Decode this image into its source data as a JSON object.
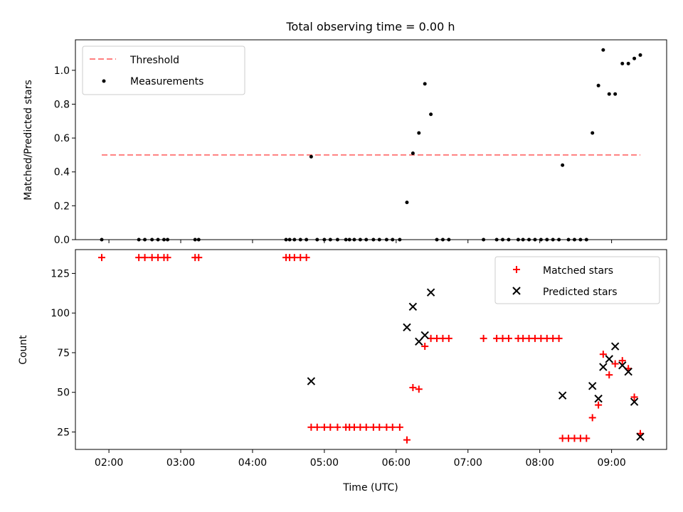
{
  "title": "Total observing time = 0.00 h",
  "xlabel": "Time (UTC)",
  "x_ticks": [
    "02:00",
    "03:00",
    "04:00",
    "05:00",
    "06:00",
    "07:00",
    "08:00",
    "09:00"
  ],
  "colors": {
    "threshold": "#ff7f7f",
    "measurement": "#000000",
    "matched": "#ff0000",
    "predicted": "#000000"
  },
  "chart_data": [
    {
      "type": "scatter",
      "ylabel": "Matched/Predicted stars",
      "xlim": [
        "01:32",
        "09:46"
      ],
      "ylim": [
        0,
        1.18
      ],
      "y_ticks": [
        0.0,
        0.2,
        0.4,
        0.6,
        0.8,
        1.0
      ],
      "legend_placement": "top-left",
      "threshold": {
        "name": "Threshold",
        "value": 0.5,
        "x_range": [
          "01:54",
          "09:24"
        ],
        "style": "dashed"
      },
      "series": [
        {
          "name": "Measurements",
          "points": [
            [
              "01:54",
              0
            ],
            [
              "02:25",
              0
            ],
            [
              "02:30",
              0
            ],
            [
              "02:36",
              0
            ],
            [
              "02:41",
              0
            ],
            [
              "02:46",
              0
            ],
            [
              "02:49",
              0
            ],
            [
              "03:12",
              0
            ],
            [
              "03:15",
              0
            ],
            [
              "04:28",
              0
            ],
            [
              "04:31",
              0
            ],
            [
              "04:35",
              0
            ],
            [
              "04:40",
              0
            ],
            [
              "04:45",
              0
            ],
            [
              "04:49",
              0.49
            ],
            [
              "04:54",
              0
            ],
            [
              "05:00",
              0
            ],
            [
              "05:05",
              0
            ],
            [
              "05:11",
              0
            ],
            [
              "05:18",
              0
            ],
            [
              "05:21",
              0
            ],
            [
              "05:25",
              0
            ],
            [
              "05:30",
              0
            ],
            [
              "05:35",
              0
            ],
            [
              "05:41",
              0
            ],
            [
              "05:46",
              0
            ],
            [
              "05:52",
              0
            ],
            [
              "05:57",
              0
            ],
            [
              "06:03",
              0
            ],
            [
              "06:09",
              0.22
            ],
            [
              "06:14",
              0.51
            ],
            [
              "06:19",
              0.63
            ],
            [
              "06:24",
              0.92
            ],
            [
              "06:29",
              0.74
            ],
            [
              "06:34",
              0
            ],
            [
              "06:39",
              0
            ],
            [
              "06:44",
              0
            ],
            [
              "07:13",
              0
            ],
            [
              "07:24",
              0
            ],
            [
              "07:29",
              0
            ],
            [
              "07:34",
              0
            ],
            [
              "07:42",
              0
            ],
            [
              "07:46",
              0
            ],
            [
              "07:51",
              0
            ],
            [
              "07:56",
              0
            ],
            [
              "08:01",
              0
            ],
            [
              "08:06",
              0
            ],
            [
              "08:11",
              0
            ],
            [
              "08:16",
              0
            ],
            [
              "08:24",
              0
            ],
            [
              "08:29",
              0
            ],
            [
              "08:34",
              0
            ],
            [
              "08:39",
              0
            ],
            [
              "08:19",
              0.44
            ],
            [
              "08:44",
              0.63
            ],
            [
              "08:49",
              0.91
            ],
            [
              "08:53",
              1.12
            ],
            [
              "08:58",
              0.86
            ],
            [
              "09:03",
              0.86
            ],
            [
              "09:09",
              1.04
            ],
            [
              "09:14",
              1.04
            ],
            [
              "09:19",
              1.07
            ],
            [
              "09:24",
              1.09
            ]
          ]
        }
      ]
    },
    {
      "type": "scatter",
      "ylabel": "Count",
      "xlim": [
        "01:32",
        "09:46"
      ],
      "ylim": [
        14,
        140
      ],
      "y_ticks": [
        25,
        50,
        75,
        100,
        125
      ],
      "legend_placement": "top-right",
      "series": [
        {
          "name": "Matched stars",
          "marker": "plus",
          "points": [
            [
              "01:54",
              135
            ],
            [
              "02:25",
              135
            ],
            [
              "02:30",
              135
            ],
            [
              "02:36",
              135
            ],
            [
              "02:41",
              135
            ],
            [
              "02:46",
              135
            ],
            [
              "02:49",
              135
            ],
            [
              "03:12",
              135
            ],
            [
              "03:15",
              135
            ],
            [
              "04:28",
              135
            ],
            [
              "04:31",
              135
            ],
            [
              "04:35",
              135
            ],
            [
              "04:40",
              135
            ],
            [
              "04:45",
              135
            ],
            [
              "04:49",
              28
            ],
            [
              "04:54",
              28
            ],
            [
              "05:00",
              28
            ],
            [
              "05:05",
              28
            ],
            [
              "05:11",
              28
            ],
            [
              "05:18",
              28
            ],
            [
              "05:21",
              28
            ],
            [
              "05:25",
              28
            ],
            [
              "05:30",
              28
            ],
            [
              "05:35",
              28
            ],
            [
              "05:41",
              28
            ],
            [
              "05:46",
              28
            ],
            [
              "05:52",
              28
            ],
            [
              "05:57",
              28
            ],
            [
              "06:03",
              28
            ],
            [
              "06:09",
              20
            ],
            [
              "06:14",
              53
            ],
            [
              "06:19",
              52
            ],
            [
              "06:24",
              79
            ],
            [
              "06:29",
              84
            ],
            [
              "06:34",
              84
            ],
            [
              "06:39",
              84
            ],
            [
              "06:44",
              84
            ],
            [
              "07:13",
              84
            ],
            [
              "07:24",
              84
            ],
            [
              "07:29",
              84
            ],
            [
              "07:34",
              84
            ],
            [
              "07:42",
              84
            ],
            [
              "07:46",
              84
            ],
            [
              "07:51",
              84
            ],
            [
              "07:56",
              84
            ],
            [
              "08:01",
              84
            ],
            [
              "08:06",
              84
            ],
            [
              "08:11",
              84
            ],
            [
              "08:16",
              84
            ],
            [
              "08:19",
              21
            ],
            [
              "08:24",
              21
            ],
            [
              "08:29",
              21
            ],
            [
              "08:34",
              21
            ],
            [
              "08:39",
              21
            ],
            [
              "08:44",
              34
            ],
            [
              "08:49",
              42
            ],
            [
              "08:53",
              74
            ],
            [
              "08:58",
              61
            ],
            [
              "09:03",
              68
            ],
            [
              "09:09",
              70
            ],
            [
              "09:14",
              65
            ],
            [
              "09:19",
              47
            ],
            [
              "09:24",
              24
            ]
          ]
        },
        {
          "name": "Predicted stars",
          "marker": "x",
          "points": [
            [
              "04:49",
              57
            ],
            [
              "06:09",
              91
            ],
            [
              "06:14",
              104
            ],
            [
              "06:19",
              82
            ],
            [
              "06:24",
              86
            ],
            [
              "06:29",
              113
            ],
            [
              "08:19",
              48
            ],
            [
              "08:44",
              54
            ],
            [
              "08:49",
              46
            ],
            [
              "08:53",
              66
            ],
            [
              "08:58",
              71
            ],
            [
              "09:03",
              79
            ],
            [
              "09:09",
              67
            ],
            [
              "09:14",
              63
            ],
            [
              "09:19",
              44
            ],
            [
              "09:24",
              22
            ]
          ]
        }
      ]
    }
  ]
}
